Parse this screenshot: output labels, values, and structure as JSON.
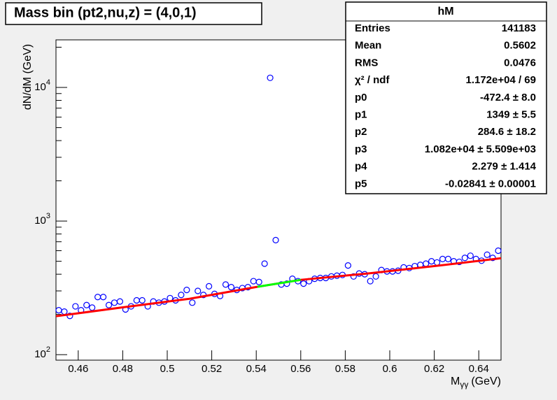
{
  "chart_data": {
    "type": "scatter",
    "title": "Mass bin (pt2,nu,z) = (4,0,1)",
    "ylabel": "dN/dM (GeV)",
    "xlabel": {
      "main": "M",
      "sub": "γγ",
      "unit": "(GeV)"
    },
    "log_y": true,
    "xlim": [
      0.45,
      0.65
    ],
    "ylim": [
      91,
      22700
    ],
    "xticks": [
      0.46,
      0.48,
      0.5,
      0.52,
      0.54,
      0.56,
      0.58,
      0.6,
      0.62,
      0.64
    ],
    "yticks": [
      {
        "value": 100,
        "label": "10",
        "exponent": "2"
      },
      {
        "value": 1000,
        "label": "10",
        "exponent": "3"
      },
      {
        "value": 10000,
        "label": "10",
        "exponent": "4"
      }
    ],
    "yminorticks": [
      200,
      300,
      400,
      500,
      600,
      700,
      800,
      900,
      2000,
      3000,
      4000,
      5000,
      6000,
      7000,
      8000,
      9000,
      20000
    ],
    "marker_color": "#0000ff",
    "x": [
      0.45125,
      0.45375,
      0.45625,
      0.45875,
      0.46125,
      0.46375,
      0.46625,
      0.46875,
      0.47125,
      0.47375,
      0.47625,
      0.47875,
      0.48125,
      0.48375,
      0.48625,
      0.48875,
      0.49125,
      0.49375,
      0.49625,
      0.49875,
      0.50125,
      0.50375,
      0.50625,
      0.50875,
      0.51125,
      0.51375,
      0.51625,
      0.51875,
      0.52125,
      0.52375,
      0.52625,
      0.52875,
      0.53125,
      0.53375,
      0.53625,
      0.53875,
      0.54125,
      0.54375,
      0.54625,
      0.54875,
      0.55125,
      0.55375,
      0.55625,
      0.55875,
      0.56125,
      0.56375,
      0.56625,
      0.56875,
      0.57125,
      0.57375,
      0.57625,
      0.57875,
      0.58125,
      0.58375,
      0.58625,
      0.58875,
      0.59125,
      0.59375,
      0.59625,
      0.59875,
      0.60125,
      0.60375,
      0.60625,
      0.60875,
      0.61125,
      0.61375,
      0.61625,
      0.61875,
      0.62125,
      0.62375,
      0.62625,
      0.62875,
      0.63125,
      0.63375,
      0.63625,
      0.63875,
      0.64125,
      0.64375,
      0.64625,
      0.64875
    ],
    "values": [
      215,
      210,
      195,
      230,
      215,
      235,
      225,
      270,
      270,
      235,
      245,
      250,
      218,
      230,
      255,
      255,
      230,
      250,
      245,
      250,
      265,
      255,
      280,
      305,
      245,
      300,
      280,
      325,
      285,
      275,
      335,
      320,
      305,
      315,
      320,
      355,
      350,
      480,
      11800,
      720,
      335,
      340,
      370,
      355,
      340,
      355,
      370,
      375,
      375,
      385,
      390,
      395,
      465,
      385,
      405,
      400,
      355,
      385,
      430,
      420,
      420,
      425,
      450,
      445,
      460,
      470,
      480,
      500,
      490,
      520,
      520,
      500,
      495,
      530,
      550,
      520,
      505,
      560,
      530,
      600
    ],
    "fit_curve": {
      "color": "#ff0000",
      "x": [
        0.45,
        0.48,
        0.51,
        0.5405,
        0.56,
        0.59,
        0.62,
        0.65
      ],
      "values": [
        194,
        226,
        262,
        322,
        363,
        405,
        460,
        527
      ]
    },
    "fit_region": {
      "color": "#00ff00",
      "x": [
        0.5405,
        0.56
      ],
      "values": [
        322,
        363
      ]
    },
    "stats": {
      "title": "hM",
      "rows": [
        [
          "Entries",
          "141183"
        ],
        [
          "Mean",
          "0.5602"
        ],
        [
          "RMS",
          "0.0476"
        ],
        [
          "χ² / ndf",
          "1.172e+04 / 69"
        ],
        [
          "p0",
          "-472.4 ± 8.0"
        ],
        [
          "p1",
          "1349 ± 5.5"
        ],
        [
          "p2",
          "284.6 ± 18.2"
        ],
        [
          "p3",
          "1.082e+04 ± 5.509e+03"
        ],
        [
          "p4",
          "2.279 ± 1.414"
        ],
        [
          "p5",
          "-0.02841 ± 0.00001"
        ]
      ]
    }
  }
}
